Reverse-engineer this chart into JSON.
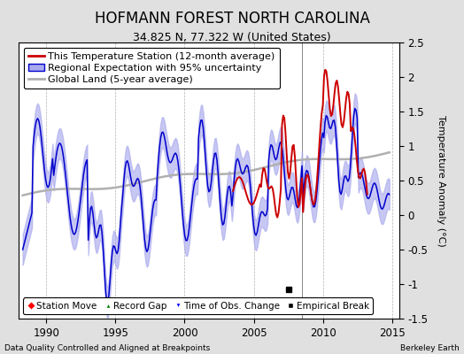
{
  "title": "HOFMANN FOREST NORTH CAROLINA",
  "subtitle": "34.825 N, 77.322 W (United States)",
  "ylabel": "Temperature Anomaly (°C)",
  "xlabel_left": "Data Quality Controlled and Aligned at Breakpoints",
  "xlabel_right": "Berkeley Earth",
  "ylim": [
    -1.5,
    2.5
  ],
  "xlim": [
    1988.0,
    2015.5
  ],
  "yticks": [
    -1.5,
    -1.0,
    -0.5,
    0.0,
    0.5,
    1.0,
    1.5,
    2.0,
    2.5
  ],
  "xticks": [
    1990,
    1995,
    2000,
    2005,
    2010,
    2015
  ],
  "bg_color": "#e0e0e0",
  "plot_bg_color": "#ffffff",
  "grid_color": "#b0b0b0",
  "regional_color": "#0000cc",
  "regional_fill_color": "#aaaaee",
  "station_color": "#cc0000",
  "global_color": "#b0b0b0",
  "vline_color": "#888888",
  "vline_x": 2008.5,
  "empirical_break_x": 2007.5,
  "empirical_break_y": -1.08,
  "title_fontsize": 12,
  "subtitle_fontsize": 9,
  "tick_fontsize": 8.5,
  "label_fontsize": 8,
  "legend_fontsize": 8
}
